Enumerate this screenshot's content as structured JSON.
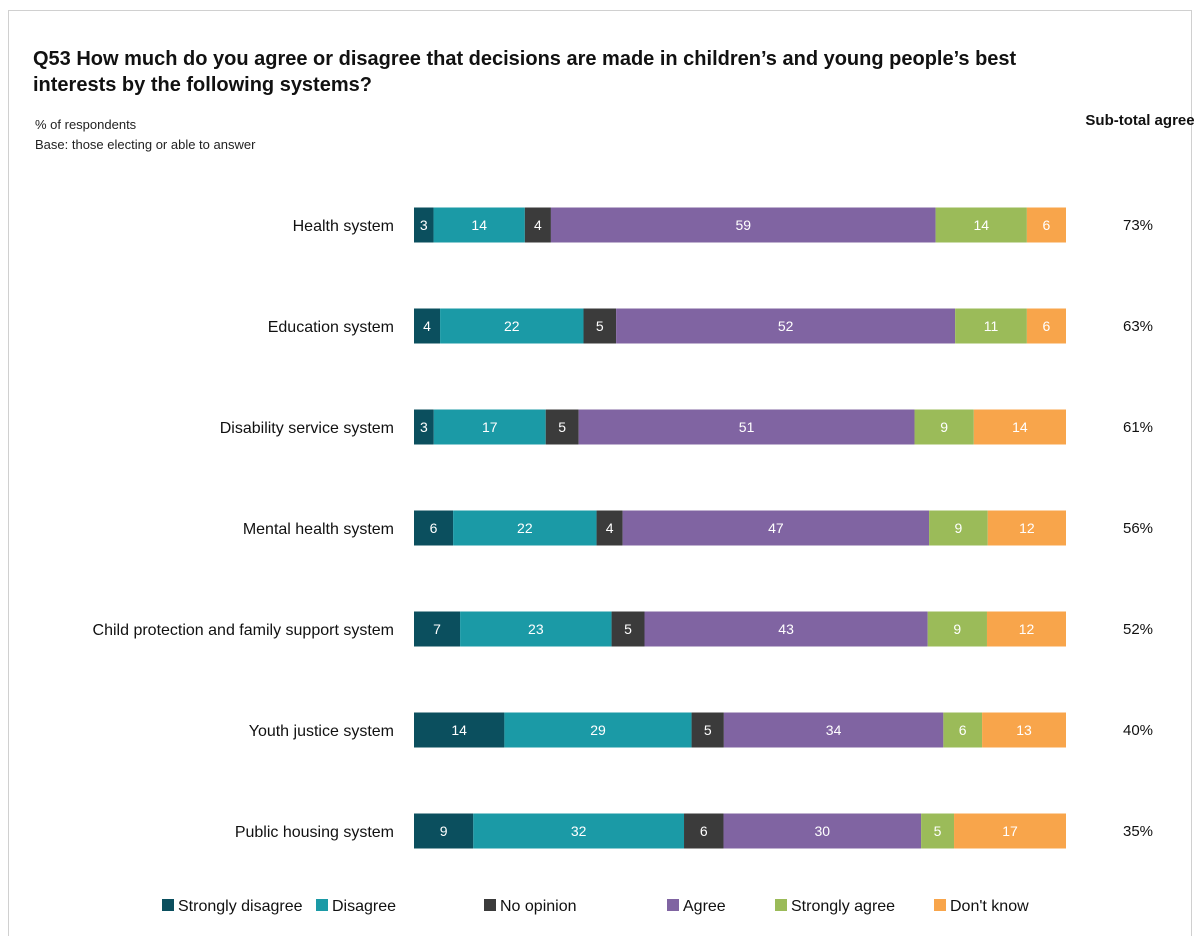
{
  "chart_data": {
    "type": "bar",
    "orientation": "horizontal",
    "stacked": true,
    "title": "Q53 How much do you agree or disagree that decisions are made in children’s and young people’s best interests by the following systems?",
    "subtitle_lines": [
      "% of respondents",
      "Base: those electing or able to answer"
    ],
    "subtotal_header": "Sub-total agree",
    "categories": [
      "Health system",
      "Education system",
      "Disability service system",
      "Mental health system",
      "Child protection and family support system",
      "Youth justice system",
      "Public housing system"
    ],
    "series": [
      {
        "name": "Strongly disagree",
        "color": "#0b4f5e",
        "values": [
          3,
          4,
          3,
          6,
          7,
          14,
          9
        ]
      },
      {
        "name": "Disagree",
        "color": "#1b9aa6",
        "values": [
          14,
          22,
          17,
          22,
          23,
          29,
          32
        ]
      },
      {
        "name": "No opinion",
        "color": "#3b3b3b",
        "values": [
          4,
          5,
          5,
          4,
          5,
          5,
          6
        ]
      },
      {
        "name": "Agree",
        "color": "#8064a2",
        "values": [
          59,
          52,
          51,
          47,
          43,
          34,
          30
        ]
      },
      {
        "name": "Strongly agree",
        "color": "#9bbb59",
        "values": [
          14,
          11,
          9,
          9,
          9,
          6,
          5
        ]
      },
      {
        "name": "Don't know",
        "color": "#f8a54b",
        "values": [
          6,
          6,
          14,
          12,
          12,
          13,
          17
        ]
      }
    ],
    "subtotal_agree": [
      "73%",
      "63%",
      "61%",
      "56%",
      "52%",
      "40%",
      "35%"
    ],
    "legend_position": "bottom",
    "grid": false,
    "xlim": [
      0,
      100
    ]
  }
}
